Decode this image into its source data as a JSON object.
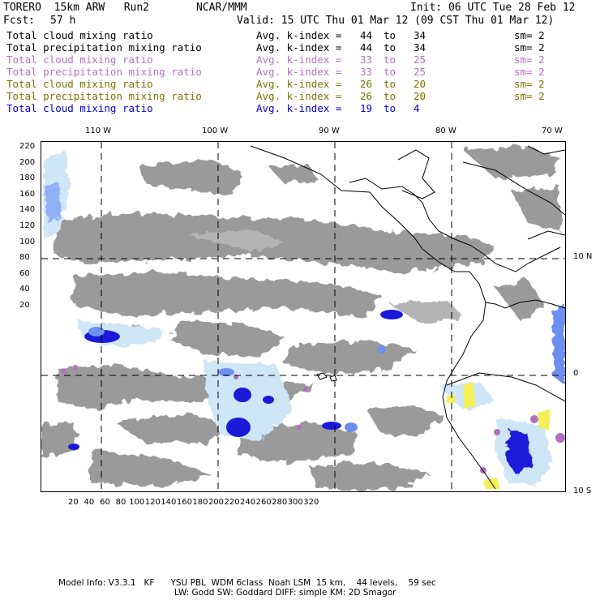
{
  "header": {
    "model": "TORERO  15km ARW   Run2",
    "org": "NCAR/MMM",
    "init": "Init: 06 UTC Tue 28 Feb 12",
    "fcst_label": "Fcst:",
    "fcst_value": "57 h",
    "valid": "Valid: 15 UTC Thu 01 Mar 12 (09 CST Thu 01 Mar 12)"
  },
  "legend": [
    {
      "field": "Total cloud mixing ratio",
      "kindex": "Avg. k-index =",
      "from": "44",
      "to_word": "to",
      "to": "34",
      "sm": "sm= 2",
      "color": "#000000"
    },
    {
      "field": "Total precipitation mixing ratio",
      "kindex": "Avg. k-index =",
      "from": "44",
      "to_word": "to",
      "to": "34",
      "sm": "sm= 2",
      "color": "#000000"
    },
    {
      "field": "Total cloud mixing ratio",
      "kindex": "Avg. k-index =",
      "from": "33",
      "to_word": "to",
      "to": "25",
      "sm": "sm= 2",
      "color": "#b96fc6"
    },
    {
      "field": "Total precipitation mixing ratio",
      "kindex": "Avg. k-index =",
      "from": "33",
      "to_word": "to",
      "to": "25",
      "sm": "sm= 2",
      "color": "#b96fc6"
    },
    {
      "field": "Total cloud mixing ratio",
      "kindex": "Avg. k-index =",
      "from": "26",
      "to_word": "to",
      "to": "20",
      "sm": "sm= 2",
      "color": "#7c7400"
    },
    {
      "field": "Total precipitation mixing ratio",
      "kindex": "Avg. k-index =",
      "from": "26",
      "to_word": "to",
      "to": "20",
      "sm": "sm= 2",
      "color": "#7c7400"
    },
    {
      "field": "Total cloud mixing ratio",
      "kindex": "Avg. k-index =",
      "from": "19",
      "to_word": "to",
      "to": "4",
      "sm": "",
      "color": "#0000e0"
    }
  ],
  "map": {
    "lon_labels": [
      "110 W",
      "100 W",
      "90 W",
      "80 W",
      "70 W"
    ],
    "lat_labels": [
      "10 N",
      "0",
      "10 S"
    ],
    "y_ticks": [
      "220",
      "200",
      "180",
      "160",
      "140",
      "120",
      "100",
      "80",
      "60",
      "40",
      "20"
    ],
    "x_ticks": [
      "20",
      "40",
      "60",
      "80",
      "100",
      "120",
      "140",
      "160",
      "180",
      "200",
      "220",
      "240",
      "260",
      "280",
      "300",
      "320"
    ],
    "colors": {
      "cloud": "#9a9a9a",
      "precip_light": "#cfe6f7",
      "precip_mid": "#6e8ef0",
      "precip_heavy": "#1a1ad8",
      "purple": "#b070c0",
      "yellow": "#f5f05a"
    }
  },
  "footer": {
    "line1": "Model Info: V3.3.1   KF      YSU PBL  WDM 6class  Noah LSM  15 km,    44 levels,    59 sec",
    "line2": "LW: Godd SW: Goddard DIFF: simple KM: 2D Smagor"
  }
}
